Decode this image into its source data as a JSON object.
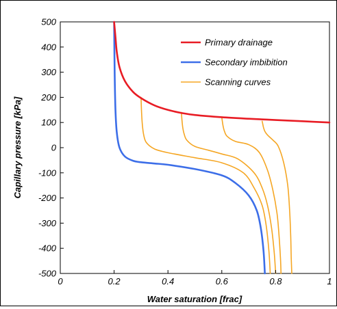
{
  "chart_data": {
    "type": "line",
    "title": "",
    "xlabel": "Water saturation [frac]",
    "ylabel": "Capillary pressure [kPa]",
    "xlim": [
      0,
      1
    ],
    "ylim": [
      -500,
      500
    ],
    "x_ticks": [
      "0",
      "0.2",
      "0.4",
      "0.6",
      "0.8",
      "1"
    ],
    "y_ticks": [
      "500",
      "400",
      "300",
      "200",
      "100",
      "0",
      "-100",
      "-200",
      "-300",
      "-400",
      "-500"
    ],
    "grid": false,
    "legend_position": "top-right",
    "series": [
      {
        "name": "Primary drainage",
        "color": "#e81c24",
        "x": [
          0.2,
          0.205,
          0.21,
          0.22,
          0.24,
          0.27,
          0.3,
          0.35,
          0.4,
          0.45,
          0.5,
          0.6,
          0.7,
          0.8,
          0.9,
          1.0
        ],
        "y": [
          500,
          440,
          380,
          320,
          265,
          222,
          197,
          168,
          150,
          138,
          130,
          121,
          115,
          110,
          105,
          100
        ]
      },
      {
        "name": "Secondary imbibition",
        "color": "#3c6ee8",
        "x": [
          0.2,
          0.202,
          0.205,
          0.21,
          0.22,
          0.24,
          0.27,
          0.3,
          0.35,
          0.4,
          0.5,
          0.6,
          0.65,
          0.7,
          0.73,
          0.745,
          0.755,
          0.76
        ],
        "y": [
          500,
          300,
          150,
          60,
          0,
          -35,
          -52,
          -58,
          -63,
          -68,
          -85,
          -110,
          -140,
          -190,
          -250,
          -320,
          -410,
          -500
        ]
      },
      {
        "name": "Scanning curves",
        "color": "#f5a623",
        "x": [
          0.3,
          0.302,
          0.305,
          0.31,
          0.32,
          0.35,
          0.4,
          0.5,
          0.6,
          0.68,
          0.72,
          0.75,
          0.765,
          0.775,
          0.78
        ],
        "y": [
          200,
          140,
          90,
          50,
          20,
          -5,
          -20,
          -40,
          -60,
          -100,
          -160,
          -230,
          -310,
          -410,
          -500
        ]
      },
      {
        "name": "",
        "color": "#f5a623",
        "x": [
          0.45,
          0.452,
          0.455,
          0.46,
          0.47,
          0.5,
          0.55,
          0.6,
          0.66,
          0.72,
          0.75,
          0.77,
          0.785,
          0.795,
          0.8
        ],
        "y": [
          140,
          110,
          80,
          55,
          30,
          5,
          -10,
          -25,
          -45,
          -100,
          -160,
          -230,
          -320,
          -420,
          -500
        ]
      },
      {
        "name": "",
        "color": "#f5a623",
        "x": [
          0.6,
          0.602,
          0.605,
          0.61,
          0.62,
          0.65,
          0.7,
          0.74,
          0.77,
          0.79,
          0.805,
          0.812,
          0.818,
          0.82
        ],
        "y": [
          120,
          105,
          85,
          65,
          45,
          25,
          12,
          -20,
          -90,
          -170,
          -260,
          -340,
          -440,
          -500
        ]
      },
      {
        "name": "",
        "color": "#f5a623",
        "x": [
          0.75,
          0.752,
          0.755,
          0.76,
          0.77,
          0.79,
          0.81,
          0.83,
          0.845,
          0.852,
          0.856,
          0.858,
          0.86
        ],
        "y": [
          105,
          95,
          80,
          65,
          50,
          30,
          5,
          -60,
          -150,
          -250,
          -350,
          -440,
          -500
        ]
      }
    ]
  }
}
